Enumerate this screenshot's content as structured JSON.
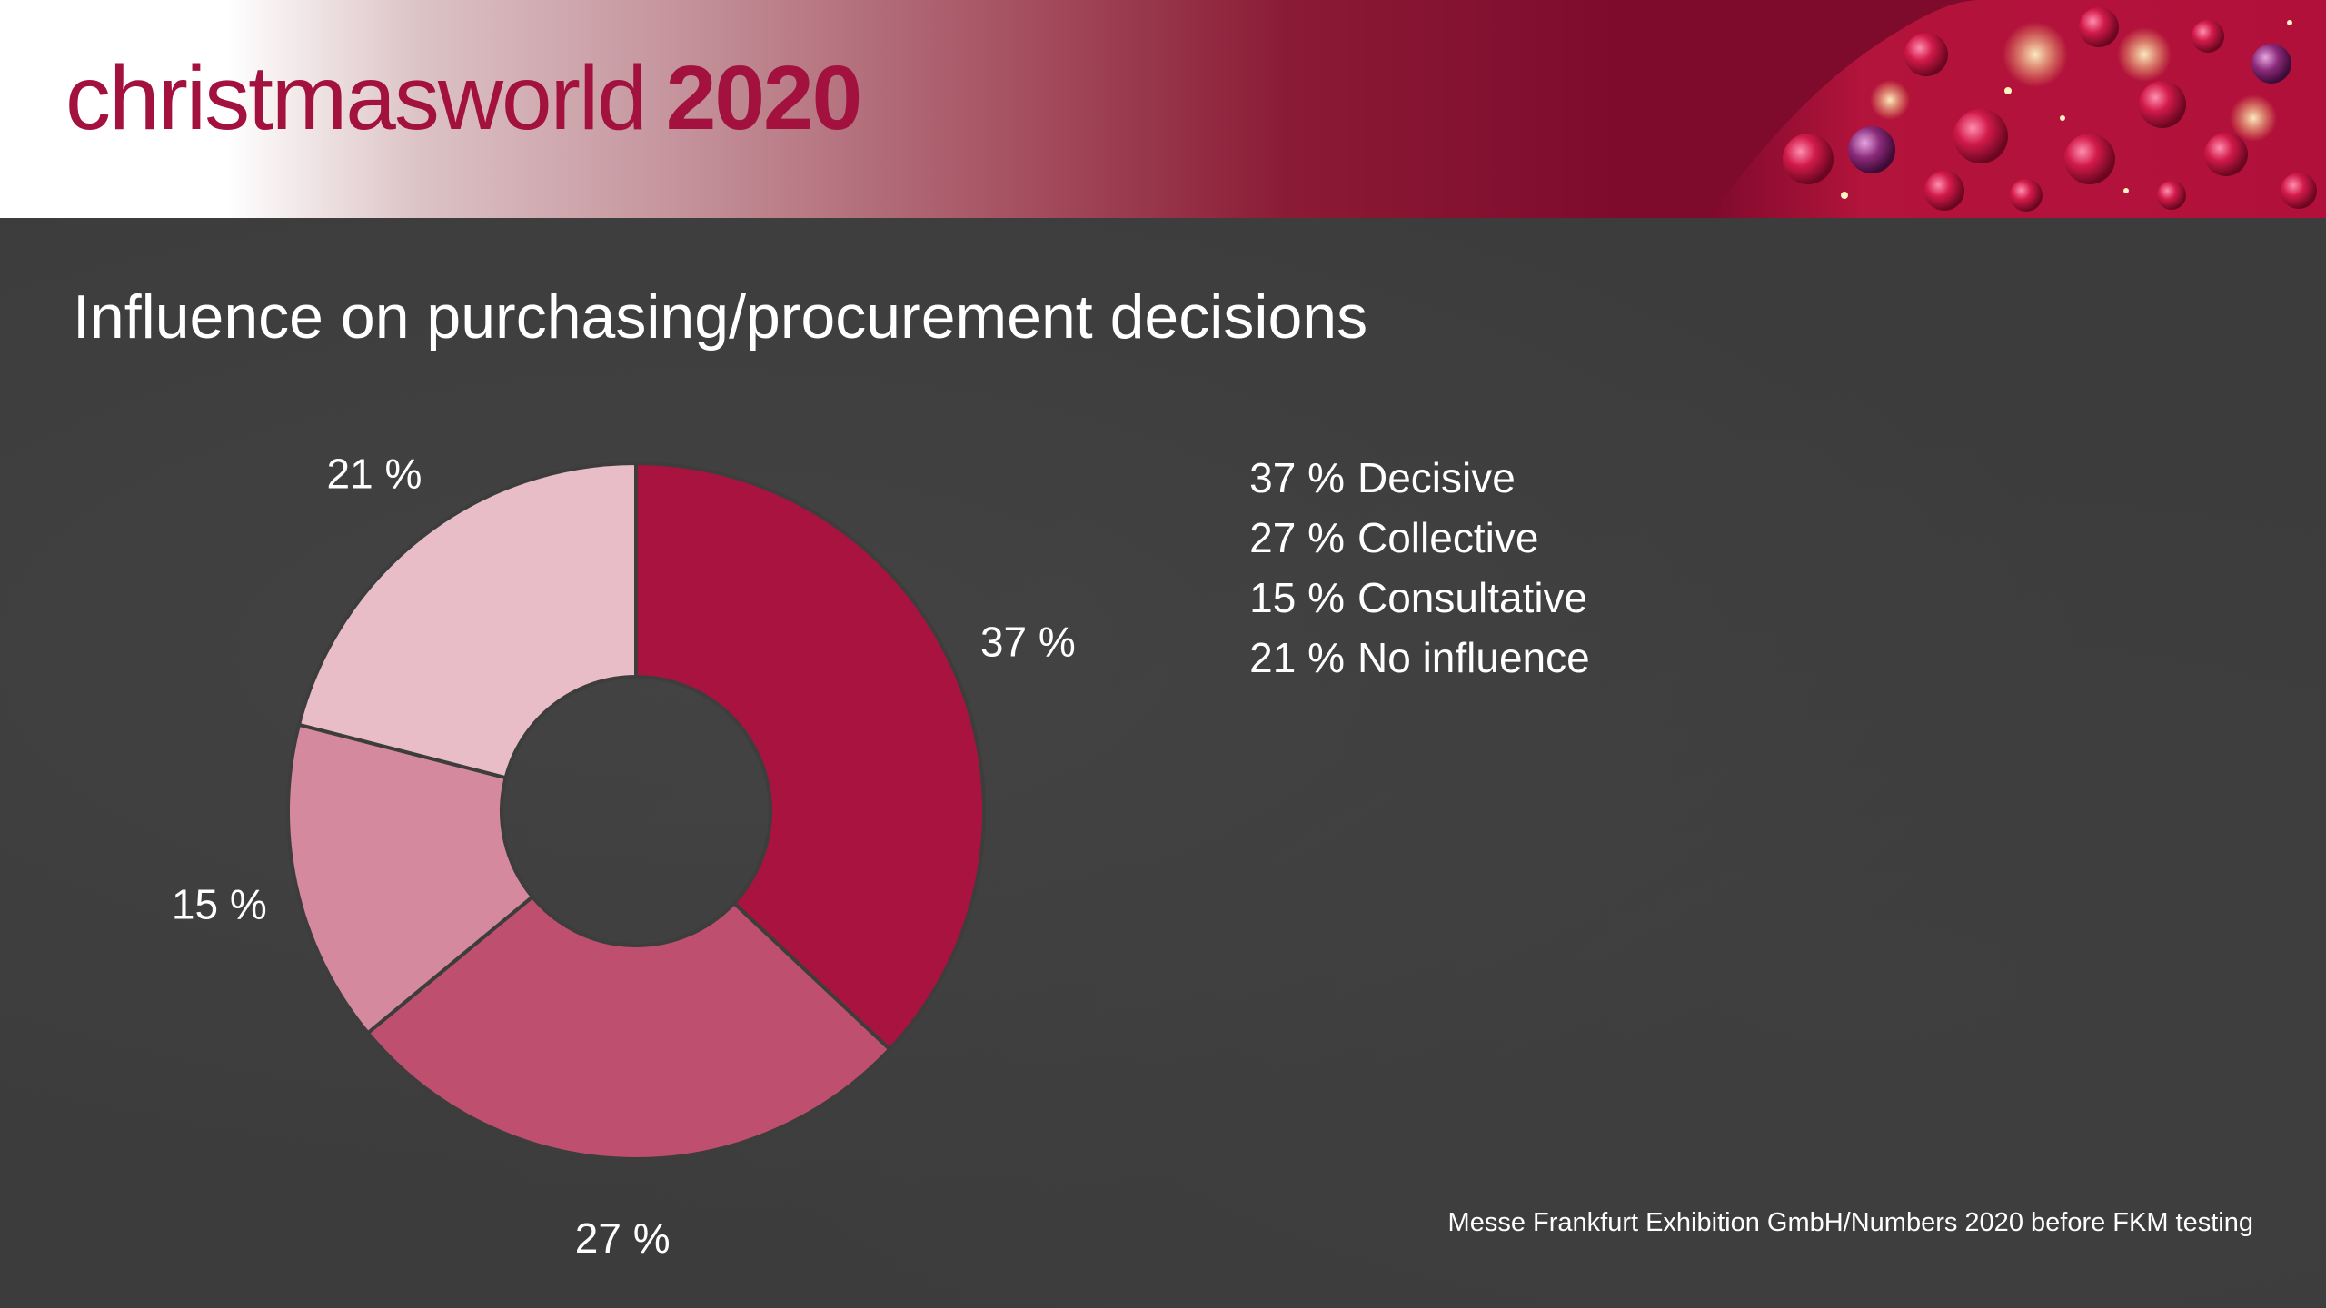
{
  "brand": {
    "name": "christmasworld",
    "year": "2020",
    "accent_color": "#a3123f"
  },
  "slide": {
    "title": "Influence on purchasing/procurement decisions",
    "source": "Messe Frankfurt Exhibition GmbH/Numbers 2020 before FKM testing"
  },
  "chart_data": {
    "type": "pie",
    "donut": true,
    "title": "",
    "categories": [
      "Decisive",
      "Collective",
      "Consultative",
      "No influence"
    ],
    "values": [
      37,
      27,
      15,
      21
    ],
    "unit": "%",
    "data_labels": [
      "37 %",
      "27 %",
      "15 %",
      "21 %"
    ],
    "colors": [
      "#a8133f",
      "#bf4f6e",
      "#d5899e",
      "#e8bdc8"
    ],
    "legend_position": "right",
    "legend": [
      {
        "pct": "37 %",
        "label": "Decisive"
      },
      {
        "pct": "27 %",
        "label": "Collective"
      },
      {
        "pct": "15 %",
        "label": "Consultative"
      },
      {
        "pct": "21 %",
        "label": "No influence"
      }
    ]
  }
}
